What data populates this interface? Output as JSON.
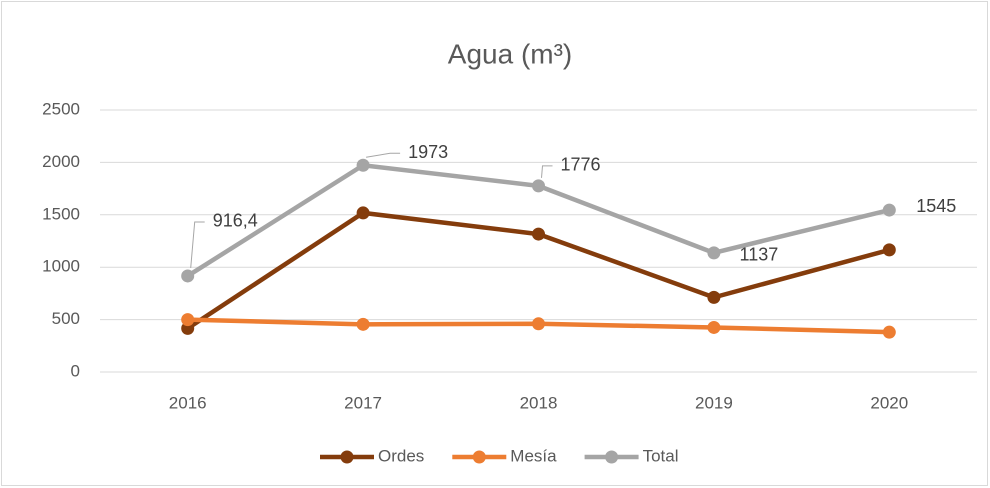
{
  "chart_data": {
    "type": "line",
    "title": "Agua (m³)",
    "categories": [
      "2016",
      "2017",
      "2018",
      "2019",
      "2020"
    ],
    "series": [
      {
        "name": "Ordes",
        "color": "#843c0c",
        "values": [
          416,
          1518,
          1316,
          712,
          1165
        ]
      },
      {
        "name": "Mesía",
        "color": "#ed7d31",
        "values": [
          500,
          455,
          460,
          425,
          380
        ]
      },
      {
        "name": "Total",
        "color": "#a5a5a5",
        "values": [
          916.4,
          1973,
          1776,
          1137,
          1545
        ],
        "value_labels": [
          "916,4",
          "1973",
          "1776",
          "1137",
          "1545"
        ]
      }
    ],
    "ylim": [
      0,
      2500
    ],
    "yticks": [
      0,
      500,
      1000,
      1500,
      2000,
      2500
    ],
    "grid": true,
    "legend": "bottom"
  }
}
